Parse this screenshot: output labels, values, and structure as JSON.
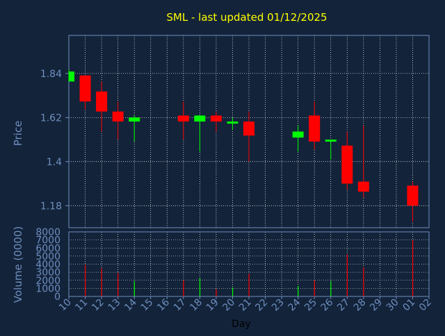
{
  "title": "SML - last updated 01/12/2025",
  "colors": {
    "background": "#13233a",
    "title": "#ffff00",
    "axis_text": "#6f8fbf",
    "grid": "#ffffff",
    "up": "#00ff00",
    "down": "#ff0000"
  },
  "chart_data": [
    {
      "type": "candlestick",
      "ylabel": "Price",
      "yticks": [
        "1.18",
        "1.4",
        "1.62",
        "1.84"
      ],
      "ylim": [
        1.07,
        2.03
      ],
      "grid": true,
      "candles": [
        {
          "day": "10",
          "open": 1.8,
          "high": 1.86,
          "low": 1.8,
          "close": 1.85
        },
        {
          "day": "11",
          "open": 1.83,
          "high": 1.83,
          "low": 1.66,
          "close": 1.7
        },
        {
          "day": "12",
          "open": 1.75,
          "high": 1.8,
          "low": 1.55,
          "close": 1.65
        },
        {
          "day": "13",
          "open": 1.65,
          "high": 1.7,
          "low": 1.51,
          "close": 1.6
        },
        {
          "day": "14",
          "open": 1.6,
          "high": 1.63,
          "low": 1.5,
          "close": 1.62
        },
        {
          "day": "17",
          "open": 1.63,
          "high": 1.7,
          "low": 1.51,
          "close": 1.6
        },
        {
          "day": "18",
          "open": 1.6,
          "high": 1.63,
          "low": 1.45,
          "close": 1.63
        },
        {
          "day": "19",
          "open": 1.63,
          "high": 1.65,
          "low": 1.55,
          "close": 1.6
        },
        {
          "day": "20",
          "open": 1.59,
          "high": 1.62,
          "low": 1.56,
          "close": 1.6
        },
        {
          "day": "21",
          "open": 1.6,
          "high": 1.65,
          "low": 1.4,
          "close": 1.53
        },
        {
          "day": "24",
          "open": 1.52,
          "high": 1.58,
          "low": 1.45,
          "close": 1.55
        },
        {
          "day": "25",
          "open": 1.63,
          "high": 1.7,
          "low": 1.46,
          "close": 1.5
        },
        {
          "day": "26",
          "open": 1.5,
          "high": 1.51,
          "low": 1.41,
          "close": 1.51
        },
        {
          "day": "27",
          "open": 1.48,
          "high": 1.55,
          "low": 1.26,
          "close": 1.29
        },
        {
          "day": "28",
          "open": 1.3,
          "high": 1.58,
          "low": 1.22,
          "close": 1.25
        },
        {
          "day": "01",
          "open": 1.28,
          "high": 1.3,
          "low": 1.1,
          "close": 1.18
        }
      ]
    },
    {
      "type": "bar",
      "ylabel": "Volume (0000)",
      "xlabel": "Day",
      "yticks": [
        "0",
        "1000",
        "2000",
        "3000",
        "4000",
        "5000",
        "6000",
        "7000",
        "8000"
      ],
      "ylim": [
        0,
        8000
      ],
      "grid": true,
      "categories": [
        "10",
        "11",
        "12",
        "13",
        "14",
        "17",
        "18",
        "19",
        "20",
        "21",
        "24",
        "25",
        "26",
        "27",
        "28",
        "01"
      ],
      "values": [
        0,
        3900,
        3500,
        2900,
        1900,
        2000,
        2300,
        900,
        1100,
        2800,
        1300,
        2000,
        1900,
        5200,
        3600,
        7000
      ],
      "directions": [
        "up",
        "down",
        "down",
        "down",
        "up",
        "down",
        "up",
        "down",
        "up",
        "down",
        "up",
        "down",
        "up",
        "down",
        "down",
        "down"
      ]
    }
  ],
  "xaxis": {
    "tick_labels": [
      "10",
      "11",
      "12",
      "13",
      "14",
      "15",
      "16",
      "17",
      "18",
      "19",
      "20",
      "21",
      "22",
      "23",
      "24",
      "25",
      "26",
      "27",
      "28",
      "29",
      "30",
      "01",
      "02"
    ]
  }
}
